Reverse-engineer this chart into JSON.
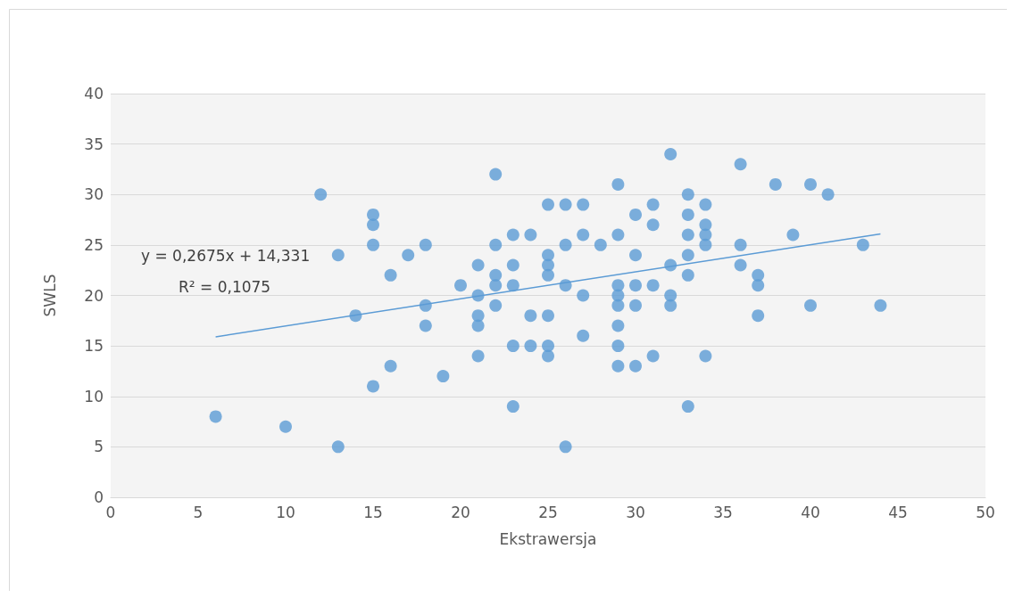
{
  "chart_data": {
    "type": "scatter",
    "xlabel": "Ekstrawersja",
    "ylabel": "SWLS",
    "xlim": [
      0,
      50
    ],
    "xticks": [
      0,
      5,
      10,
      15,
      20,
      25,
      30,
      35,
      40,
      45,
      50
    ],
    "ylim": [
      0,
      40
    ],
    "yticks": [
      0,
      5,
      10,
      15,
      20,
      25,
      30,
      35,
      40
    ],
    "grid": "y",
    "annotations": [
      "y = 0,2675x + 14,331",
      "R² = 0,1075"
    ],
    "series": [
      {
        "type": "scatter",
        "marker": "circle",
        "color": "#5b9bd5",
        "x": [
          6,
          10,
          13,
          12,
          13,
          14,
          15,
          15,
          15,
          15,
          16,
          16,
          17,
          18,
          18,
          18,
          19,
          20,
          21,
          21,
          21,
          21,
          21,
          22,
          22,
          22,
          22,
          22,
          23,
          23,
          23,
          23,
          23,
          24,
          24,
          24,
          25,
          25,
          25,
          25,
          25,
          25,
          25,
          26,
          26,
          26,
          26,
          27,
          27,
          27,
          27,
          28,
          29,
          29,
          29,
          29,
          29,
          29,
          29,
          29,
          30,
          30,
          30,
          30,
          30,
          31,
          31,
          31,
          31,
          32,
          32,
          32,
          32,
          33,
          33,
          33,
          33,
          33,
          33,
          34,
          34,
          34,
          34,
          34,
          36,
          36,
          36,
          37,
          37,
          37,
          38,
          39,
          40,
          40,
          41,
          43,
          44
        ],
        "values": [
          8,
          7,
          5,
          30,
          24,
          18,
          28,
          27,
          25,
          11,
          22,
          13,
          24,
          25,
          19,
          17,
          12,
          21,
          23,
          20,
          18,
          17,
          14,
          32,
          25,
          22,
          21,
          19,
          26,
          23,
          21,
          15,
          9,
          26,
          18,
          15,
          29,
          24,
          23,
          22,
          18,
          15,
          14,
          29,
          25,
          21,
          5,
          29,
          26,
          20,
          16,
          25,
          31,
          26,
          21,
          20,
          19,
          17,
          15,
          13,
          28,
          24,
          21,
          19,
          13,
          29,
          27,
          21,
          14,
          34,
          23,
          20,
          19,
          30,
          28,
          26,
          24,
          22,
          9,
          29,
          27,
          26,
          25,
          14,
          33,
          25,
          23,
          22,
          21,
          18,
          31,
          26,
          31,
          19,
          30,
          25,
          19
        ]
      },
      {
        "type": "line",
        "marker": "none",
        "color": "#5b9bd5",
        "x": [
          6,
          44
        ],
        "values": [
          15.9,
          26.1
        ]
      }
    ]
  }
}
